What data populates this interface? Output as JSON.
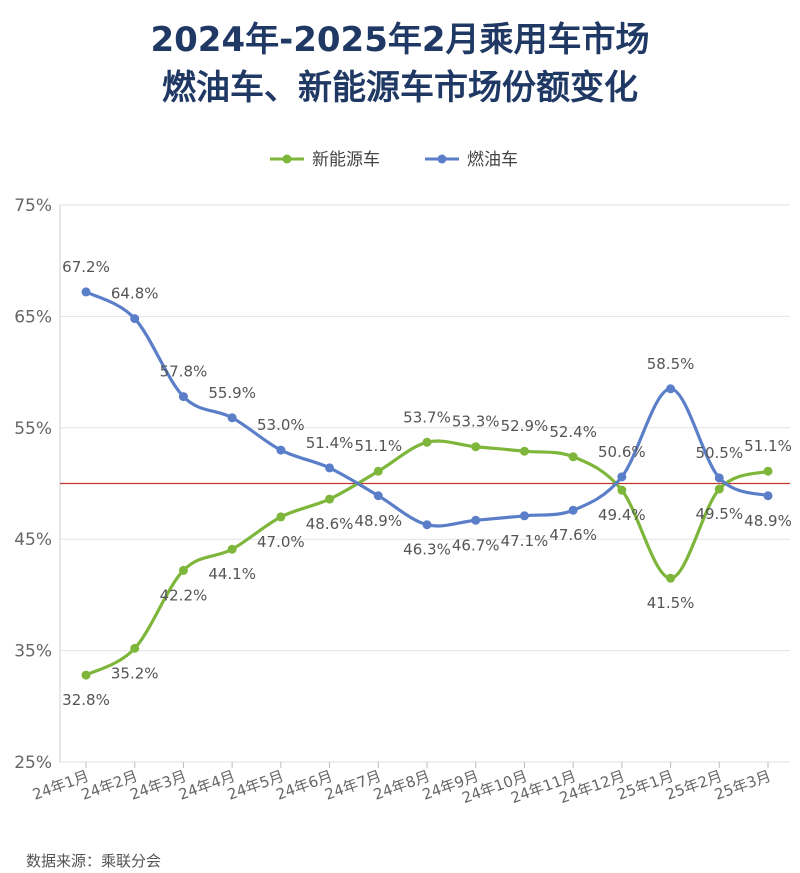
{
  "title_line1": "2024年-2025年2月乘用车市场",
  "title_line2": "燃油车、新能源车市场份额变化",
  "source": "数据来源：乘联分会",
  "colors": {
    "nev": "#7db63a",
    "ice": "#5b7ec8",
    "title": "#1f3864",
    "refline": "#c0392b"
  },
  "chart_data": {
    "type": "line",
    "categories": [
      "24年1月",
      "24年2月",
      "24年3月",
      "24年4月",
      "24年5月",
      "24年6月",
      "24年7月",
      "24年8月",
      "24年9月",
      "24年10月",
      "24年11月",
      "24年12月",
      "25年1月",
      "25年2月",
      "25年3月"
    ],
    "series": [
      {
        "name": "新能源车",
        "color": "#7db63a",
        "values": [
          32.8,
          35.2,
          42.2,
          44.1,
          47.0,
          48.6,
          51.1,
          53.7,
          53.3,
          52.9,
          52.4,
          49.4,
          41.5,
          49.5,
          51.1
        ],
        "labels": [
          "32.8%",
          "35.2%",
          "42.2%",
          "44.1%",
          "47.0%",
          "48.6%",
          "51.1%",
          "53.7%",
          "53.3%",
          "52.9%",
          "52.4%",
          "49.4%",
          "41.5%",
          "49.5%",
          "51.1%"
        ]
      },
      {
        "name": "燃油车",
        "color": "#5b7ec8",
        "values": [
          67.2,
          64.8,
          57.8,
          55.9,
          53.0,
          51.4,
          48.9,
          46.3,
          46.7,
          47.1,
          47.6,
          50.6,
          58.5,
          50.5,
          48.9
        ],
        "labels": [
          "67.2%",
          "64.8%",
          "57.8%",
          "55.9%",
          "53.0%",
          "51.4%",
          "48.9%",
          "46.3%",
          "46.7%",
          "47.1%",
          "47.6%",
          "50.6%",
          "58.5%",
          "50.5%",
          "48.9%"
        ]
      }
    ],
    "yticks": [
      25,
      35,
      45,
      55,
      65,
      75
    ],
    "ytick_labels": [
      "25%",
      "35%",
      "45%",
      "55%",
      "65%",
      "75%"
    ],
    "ylim": [
      25,
      75
    ],
    "reference_line": 50,
    "grid": true,
    "legend_position": "top-center"
  }
}
